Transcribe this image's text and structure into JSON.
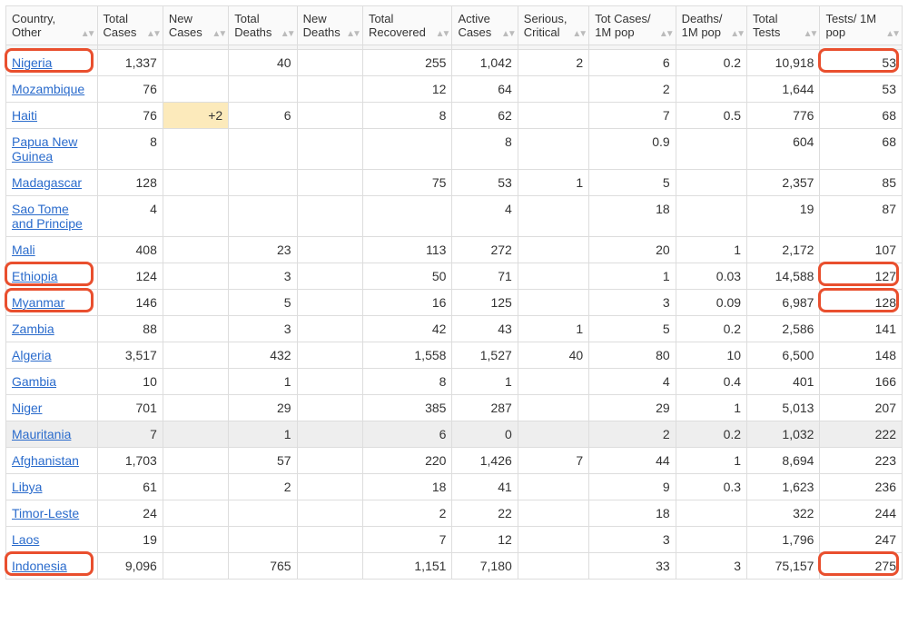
{
  "columns": [
    {
      "label": "Country, Other"
    },
    {
      "label": "Total Cases"
    },
    {
      "label": "New Cases"
    },
    {
      "label": "Total Deaths"
    },
    {
      "label": "New Deaths"
    },
    {
      "label": "Total Recovered"
    },
    {
      "label": "Active Cases"
    },
    {
      "label": "Serious, Critical"
    },
    {
      "label": "Tot Cases/ 1M pop"
    },
    {
      "label": "Deaths/ 1M pop"
    },
    {
      "label": "Total Tests"
    },
    {
      "label": "Tests/ 1M pop"
    }
  ],
  "highlight_color": "#e94f2e",
  "newcases_bg": "#fceabb",
  "rows": [
    {
      "country": "Nigeria",
      "highlight_country": true,
      "highlight_tests": true,
      "cells": [
        "1,337",
        "",
        "40",
        "",
        "255",
        "1,042",
        "2",
        "6",
        "0.2",
        "10,918",
        "53"
      ]
    },
    {
      "country": "Mozambique",
      "cells": [
        "76",
        "",
        "",
        "",
        "12",
        "64",
        "",
        "2",
        "",
        "1,644",
        "53"
      ]
    },
    {
      "country": "Haiti",
      "newcases_hl": true,
      "cells": [
        "76",
        "+2",
        "6",
        "",
        "8",
        "62",
        "",
        "7",
        "0.5",
        "776",
        "68"
      ]
    },
    {
      "country": "Papua New Guinea",
      "cells": [
        "8",
        "",
        "",
        "",
        "",
        "8",
        "",
        "0.9",
        "",
        "604",
        "68"
      ]
    },
    {
      "country": "Madagascar",
      "cells": [
        "128",
        "",
        "",
        "",
        "75",
        "53",
        "1",
        "5",
        "",
        "2,357",
        "85"
      ]
    },
    {
      "country": "Sao Tome and Principe",
      "cells": [
        "4",
        "",
        "",
        "",
        "",
        "4",
        "",
        "18",
        "",
        "19",
        "87"
      ]
    },
    {
      "country": "Mali",
      "cells": [
        "408",
        "",
        "23",
        "",
        "113",
        "272",
        "",
        "20",
        "1",
        "2,172",
        "107"
      ]
    },
    {
      "country": "Ethiopia",
      "highlight_country": true,
      "highlight_tests": true,
      "cells": [
        "124",
        "",
        "3",
        "",
        "50",
        "71",
        "",
        "1",
        "0.03",
        "14,588",
        "127"
      ]
    },
    {
      "country": "Myanmar",
      "highlight_country": true,
      "highlight_tests": true,
      "cells": [
        "146",
        "",
        "5",
        "",
        "16",
        "125",
        "",
        "3",
        "0.09",
        "6,987",
        "128"
      ]
    },
    {
      "country": "Zambia",
      "cells": [
        "88",
        "",
        "3",
        "",
        "42",
        "43",
        "1",
        "5",
        "0.2",
        "2,586",
        "141"
      ]
    },
    {
      "country": "Algeria",
      "cells": [
        "3,517",
        "",
        "432",
        "",
        "1,558",
        "1,527",
        "40",
        "80",
        "10",
        "6,500",
        "148"
      ]
    },
    {
      "country": "Gambia",
      "cells": [
        "10",
        "",
        "1",
        "",
        "8",
        "1",
        "",
        "4",
        "0.4",
        "401",
        "166"
      ]
    },
    {
      "country": "Niger",
      "cells": [
        "701",
        "",
        "29",
        "",
        "385",
        "287",
        "",
        "29",
        "1",
        "5,013",
        "207"
      ]
    },
    {
      "country": "Mauritania",
      "row_hl": true,
      "cells": [
        "7",
        "",
        "1",
        "",
        "6",
        "0",
        "",
        "2",
        "0.2",
        "1,032",
        "222"
      ]
    },
    {
      "country": "Afghanistan",
      "cells": [
        "1,703",
        "",
        "57",
        "",
        "220",
        "1,426",
        "7",
        "44",
        "1",
        "8,694",
        "223"
      ]
    },
    {
      "country": "Libya",
      "cells": [
        "61",
        "",
        "2",
        "",
        "18",
        "41",
        "",
        "9",
        "0.3",
        "1,623",
        "236"
      ]
    },
    {
      "country": "Timor-Leste",
      "cells": [
        "24",
        "",
        "",
        "",
        "2",
        "22",
        "",
        "18",
        "",
        "322",
        "244"
      ]
    },
    {
      "country": "Laos",
      "cells": [
        "19",
        "",
        "",
        "",
        "7",
        "12",
        "",
        "3",
        "",
        "1,796",
        "247"
      ]
    },
    {
      "country": "Indonesia",
      "highlight_country": true,
      "highlight_tests": true,
      "cells": [
        "9,096",
        "",
        "765",
        "",
        "1,151",
        "7,180",
        "",
        "33",
        "3",
        "75,157",
        "275"
      ]
    }
  ]
}
